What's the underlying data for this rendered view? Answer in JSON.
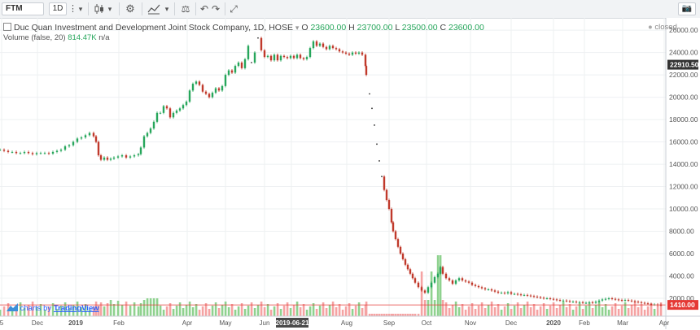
{
  "toolbar": {
    "symbol": "FTM",
    "interval": "1D",
    "more_label": "⋮",
    "dropdown_label": "▾",
    "settings_label": "⚙",
    "compare_label": "⚖",
    "undo_label": "↶",
    "redo_label": "↷",
    "fullscreen_label": "⤢",
    "snapshot_label": "📷"
  },
  "legend": {
    "title": "Duc Quan Investment and Development Joint Stock Company, 1D, HOSE",
    "o_label": "O",
    "o": "23600.00",
    "h_label": "H",
    "h": "23700.00",
    "l_label": "L",
    "l": "23500.00",
    "c_label": "C",
    "c": "23600.00",
    "volume_label": "Volume (false, 20)",
    "volume_value": "814.47K",
    "volume_na": "n/a",
    "status": "closed"
  },
  "watermark": {
    "prefix": "charts by",
    "brand": "TradingView"
  },
  "colors": {
    "up": "#26a65b",
    "down": "#c0392b",
    "vol_up": "#8fd28f",
    "vol_down": "#f5a3a3",
    "price_line": "#e53935",
    "grid": "#eef0f2"
  },
  "chart_data": {
    "type": "candlestick",
    "title": "Duc Quan Investment and Development Joint Stock Company, 1D, HOSE",
    "y_ticks": [
      "26000.00",
      "24000.00",
      "22000.00",
      "20000.00",
      "18000.00",
      "16000.00",
      "14000.00",
      "12000.00",
      "10000.00",
      "8000.00",
      "6000.00",
      "4000.00",
      "2000.00"
    ],
    "y_tick_values": [
      26000,
      24000,
      22000,
      20000,
      18000,
      16000,
      14000,
      12000,
      10000,
      8000,
      6000,
      4000,
      2000
    ],
    "ylim": [
      400,
      27100
    ],
    "x_ticks": [
      "5",
      "Dec",
      "2019",
      "Feb",
      "Apr",
      "May",
      "Jun",
      "2019-06-21",
      "Aug",
      "Sep",
      "Oct",
      "Nov",
      "Dec",
      "2020",
      "Feb",
      "Mar",
      "Apr"
    ],
    "highlighted_date": "2019-06-21",
    "last_price_label": "22910.50",
    "current_price_label": "1410.00",
    "current_price": 1410,
    "grid": true,
    "price_series": [
      [
        0,
        15300
      ],
      [
        5,
        15200
      ],
      [
        10,
        15100
      ],
      [
        15,
        15100
      ],
      [
        20,
        15000
      ],
      [
        25,
        15000
      ],
      [
        30,
        15100
      ],
      [
        35,
        15000
      ],
      [
        40,
        14900
      ],
      [
        45,
        15000
      ],
      [
        50,
        15000
      ],
      [
        55,
        15000
      ],
      [
        60,
        14950
      ],
      [
        65,
        15100
      ],
      [
        70,
        15200
      ],
      [
        75,
        15300
      ],
      [
        80,
        15600
      ],
      [
        85,
        15700
      ],
      [
        90,
        16000
      ],
      [
        95,
        16300
      ],
      [
        100,
        16400
      ],
      [
        105,
        16600
      ],
      [
        110,
        16800
      ],
      [
        115,
        16500
      ],
      [
        118,
        16000
      ],
      [
        121,
        14800
      ],
      [
        124,
        14400
      ],
      [
        128,
        14600
      ],
      [
        132,
        14400
      ],
      [
        136,
        14500
      ],
      [
        140,
        14600
      ],
      [
        145,
        14700
      ],
      [
        150,
        14800
      ],
      [
        155,
        14600
      ],
      [
        160,
        14700
      ],
      [
        165,
        14800
      ],
      [
        170,
        14900
      ],
      [
        173,
        15500
      ],
      [
        177,
        16500
      ],
      [
        181,
        16800
      ],
      [
        185,
        17200
      ],
      [
        189,
        17800
      ],
      [
        193,
        18600
      ],
      [
        197,
        18600
      ],
      [
        201,
        19200
      ],
      [
        205,
        19000
      ],
      [
        209,
        18200
      ],
      [
        213,
        18600
      ],
      [
        217,
        18800
      ],
      [
        221,
        19000
      ],
      [
        225,
        19300
      ],
      [
        229,
        19600
      ],
      [
        233,
        20600
      ],
      [
        237,
        21200
      ],
      [
        241,
        21400
      ],
      [
        245,
        21100
      ],
      [
        249,
        20500
      ],
      [
        253,
        20300
      ],
      [
        257,
        20000
      ],
      [
        261,
        20400
      ],
      [
        265,
        20800
      ],
      [
        269,
        20600
      ],
      [
        273,
        21000
      ],
      [
        277,
        22000
      ],
      [
        281,
        22400
      ],
      [
        285,
        22200
      ],
      [
        289,
        22800
      ],
      [
        293,
        23100
      ],
      [
        297,
        22600
      ],
      [
        301,
        23400
      ],
      [
        305,
        24600
      ],
      [
        309,
        23100
      ],
      [
        313,
        24000
      ],
      [
        317,
        25300
      ],
      [
        321,
        24200
      ],
      [
        325,
        23600
      ],
      [
        329,
        23700
      ],
      [
        333,
        23300
      ],
      [
        337,
        23800
      ],
      [
        341,
        23300
      ],
      [
        345,
        23700
      ],
      [
        349,
        23600
      ],
      [
        353,
        23500
      ],
      [
        357,
        23700
      ],
      [
        361,
        23500
      ],
      [
        365,
        23800
      ],
      [
        369,
        23500
      ],
      [
        373,
        23400
      ],
      [
        377,
        23600
      ],
      [
        381,
        24400
      ],
      [
        385,
        25000
      ],
      [
        389,
        24600
      ],
      [
        393,
        24800
      ],
      [
        397,
        24500
      ],
      [
        401,
        24300
      ],
      [
        405,
        24600
      ],
      [
        409,
        24400
      ],
      [
        413,
        24300
      ],
      [
        417,
        24100
      ],
      [
        421,
        24000
      ],
      [
        425,
        23900
      ],
      [
        429,
        23800
      ],
      [
        433,
        24000
      ],
      [
        437,
        23900
      ],
      [
        441,
        24000
      ],
      [
        445,
        23800
      ],
      [
        449,
        22800
      ],
      [
        450,
        22000
      ],
      [
        454,
        20300
      ],
      [
        457,
        19000
      ],
      [
        460,
        17500
      ],
      [
        463,
        15800
      ],
      [
        466,
        14300
      ],
      [
        469,
        12900
      ],
      [
        472,
        11700
      ],
      [
        475,
        10800
      ],
      [
        478,
        10000
      ],
      [
        481,
        8800
      ],
      [
        483,
        8000
      ],
      [
        486,
        7300
      ],
      [
        489,
        6600
      ],
      [
        492,
        6000
      ],
      [
        495,
        5500
      ],
      [
        498,
        5000
      ],
      [
        501,
        4600
      ],
      [
        504,
        4200
      ],
      [
        507,
        3800
      ],
      [
        510,
        3400
      ],
      [
        514,
        3000
      ],
      [
        518,
        2700
      ],
      [
        522,
        2500
      ],
      [
        526,
        3000
      ],
      [
        530,
        3400
      ],
      [
        534,
        3900
      ],
      [
        538,
        4200
      ],
      [
        541,
        4800
      ],
      [
        544,
        4200
      ],
      [
        548,
        3800
      ],
      [
        552,
        3600
      ],
      [
        556,
        3300
      ],
      [
        560,
        3600
      ],
      [
        564,
        3800
      ],
      [
        568,
        3600
      ],
      [
        572,
        3500
      ],
      [
        576,
        3400
      ],
      [
        580,
        3200
      ],
      [
        584,
        3100
      ],
      [
        588,
        3000
      ],
      [
        592,
        2900
      ],
      [
        596,
        2800
      ],
      [
        600,
        2800
      ],
      [
        604,
        2700
      ],
      [
        608,
        2600
      ],
      [
        612,
        2500
      ],
      [
        616,
        2500
      ],
      [
        620,
        2450
      ],
      [
        624,
        2550
      ],
      [
        628,
        2400
      ],
      [
        632,
        2400
      ],
      [
        636,
        2350
      ],
      [
        640,
        2300
      ],
      [
        644,
        2300
      ],
      [
        648,
        2250
      ],
      [
        652,
        2200
      ],
      [
        656,
        2150
      ],
      [
        660,
        2100
      ],
      [
        664,
        2050
      ],
      [
        668,
        2000
      ],
      [
        672,
        2000
      ],
      [
        676,
        1950
      ],
      [
        680,
        1900
      ],
      [
        684,
        1850
      ],
      [
        688,
        1800
      ],
      [
        692,
        1800
      ],
      [
        696,
        1750
      ],
      [
        700,
        1700
      ],
      [
        704,
        1700
      ],
      [
        708,
        1650
      ],
      [
        712,
        1650
      ],
      [
        716,
        1600
      ],
      [
        720,
        1600
      ],
      [
        724,
        1650
      ],
      [
        728,
        1600
      ],
      [
        732,
        1700
      ],
      [
        736,
        1800
      ],
      [
        740,
        1900
      ],
      [
        744,
        1950
      ],
      [
        748,
        2000
      ],
      [
        752,
        1950
      ],
      [
        756,
        1900
      ],
      [
        760,
        1850
      ],
      [
        764,
        1800
      ],
      [
        768,
        1850
      ],
      [
        772,
        1800
      ],
      [
        776,
        1750
      ],
      [
        780,
        1700
      ],
      [
        784,
        1650
      ],
      [
        788,
        1600
      ],
      [
        792,
        1550
      ],
      [
        796,
        1500
      ],
      [
        800,
        1450
      ],
      [
        804,
        1450
      ],
      [
        808,
        1420
      ],
      [
        812,
        1410
      ]
    ]
  }
}
